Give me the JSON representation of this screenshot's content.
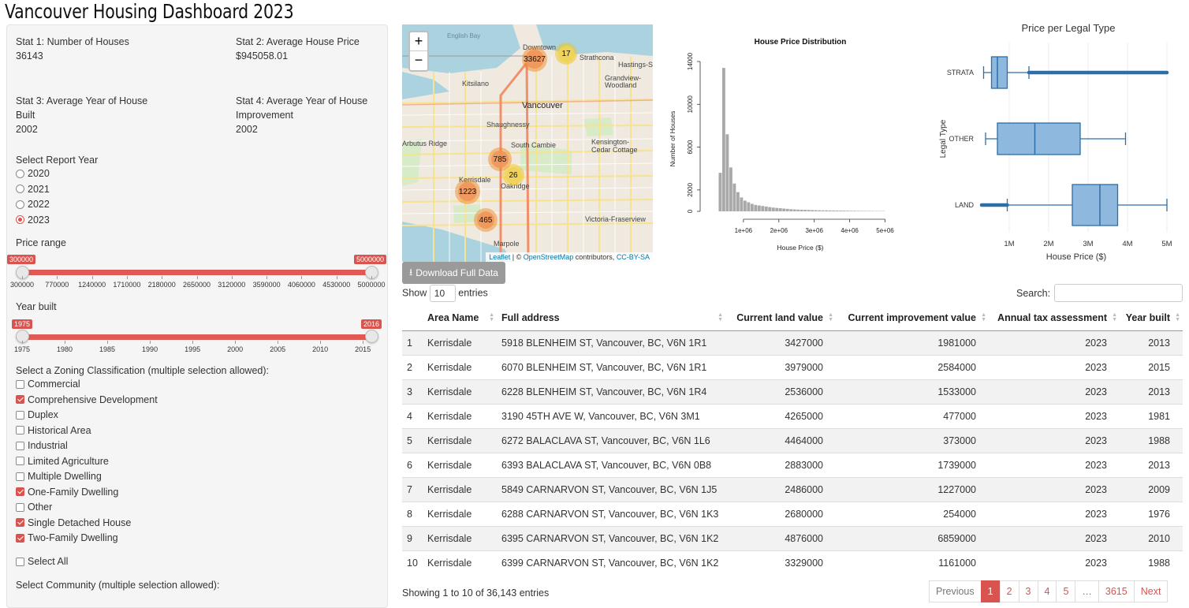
{
  "title": "Vancouver Housing Dashboard 2023",
  "stats": {
    "s1_label": "Stat 1: Number of Houses",
    "s1_value": "36143",
    "s2_label": "Stat 2: Average House Price",
    "s2_value": "$945058.01",
    "s3_label_a": "Stat 3: Average Year of House",
    "s3_label_b": "Built",
    "s3_value": "2002",
    "s4_label_a": "Stat 4: Average Year of House",
    "s4_label_b": "Improvement",
    "s4_value": "2002"
  },
  "report_year": {
    "label": "Select Report Year",
    "options": [
      "2020",
      "2021",
      "2022",
      "2023"
    ],
    "selected": "2023"
  },
  "price_range": {
    "label": "Price range",
    "min_badge": "300000",
    "max_badge": "5000000",
    "ticks": [
      "300000",
      "770000",
      "1240000",
      "1710000",
      "2180000",
      "2650000",
      "3120000",
      "3590000",
      "4060000",
      "4530000",
      "5000000"
    ]
  },
  "year_built": {
    "label": "Year built",
    "min_badge": "1975",
    "max_badge": "2016",
    "ticks": [
      "1975",
      "1980",
      "1985",
      "1990",
      "1995",
      "2000",
      "2005",
      "2010",
      "2015"
    ]
  },
  "zoning": {
    "label": "Select a Zoning Classification (multiple selection allowed):",
    "items": [
      {
        "label": "Commercial",
        "checked": false
      },
      {
        "label": "Comprehensive Development",
        "checked": true
      },
      {
        "label": "Duplex",
        "checked": false
      },
      {
        "label": "Historical Area",
        "checked": false
      },
      {
        "label": "Industrial",
        "checked": false
      },
      {
        "label": "Limited Agriculture",
        "checked": false
      },
      {
        "label": "Multiple Dwelling",
        "checked": false
      },
      {
        "label": "One-Family Dwelling",
        "checked": true
      },
      {
        "label": "Other",
        "checked": false
      },
      {
        "label": "Single Detached House",
        "checked": true
      },
      {
        "label": "Two-Family Dwelling",
        "checked": true
      }
    ],
    "select_all": "Select All"
  },
  "community": {
    "label": "Select Community (multiple selection allowed):"
  },
  "map": {
    "zoom_in": "+",
    "zoom_out": "−",
    "clusters": [
      "33627",
      "17",
      "785",
      "26",
      "1223",
      "465"
    ],
    "labels": [
      "English Bay",
      "Downtown",
      "Hastings-Sunrise",
      "Kitsilano",
      "Grandview-Woodland",
      "Vancouver",
      "Shaughnessy",
      "Arbutus Ridge",
      "South Cambie",
      "Kensington-Cedar Cottage",
      "Kerrisdale",
      "Oakridge",
      "Victoria-Fraserview",
      "Marpole",
      "Strathcona"
    ],
    "attrib_leaflet": "Leaflet",
    "attrib_osm": "OpenStreetMap",
    "attrib_sep": " | © ",
    "attrib_mid": " contributors, ",
    "attrib_cc": "CC-BY-SA"
  },
  "download_label": "Download Full Data",
  "histogram": {
    "title": "House Price Distribution",
    "xlabel": "House Price ($)",
    "ylabel": "Number of Houses"
  },
  "boxplot": {
    "title": "Price per Legal Type",
    "xlabel": "House Price ($)",
    "ylabel": "Legal Type"
  },
  "chart_data": [
    {
      "type": "bar",
      "title": "House Price Distribution",
      "xlabel": "House Price ($)",
      "ylabel": "Number of Houses",
      "bin_width": 100000,
      "bin_start": 300000,
      "values": [
        3600,
        13400,
        7200,
        4100,
        2600,
        1800,
        1300,
        1000,
        850,
        700,
        600,
        550,
        500,
        450,
        400,
        350,
        320,
        290,
        260,
        230,
        200,
        180,
        160,
        150,
        140,
        130,
        120,
        110,
        100,
        95,
        90,
        85,
        80,
        75,
        70,
        65,
        60,
        55,
        50,
        45,
        40,
        38,
        36,
        34,
        32,
        30,
        28
      ],
      "xlim": [
        300000,
        5000000
      ],
      "ylim": [
        0,
        14000
      ],
      "x_ticks": [
        "1e+06",
        "2e+06",
        "3e+06",
        "4e+06",
        "5e+06"
      ],
      "y_ticks": [
        "0",
        "2000",
        "6000",
        "10000",
        "14000"
      ]
    },
    {
      "type": "box",
      "title": "Price per Legal Type",
      "xlabel": "House Price ($)",
      "ylabel": "Legal Type",
      "categories": [
        "STRATA",
        "OTHER",
        "LAND"
      ],
      "boxes": [
        {
          "name": "STRATA",
          "whisker_low": 350000,
          "q1": 550000,
          "median": 700000,
          "q3": 950000,
          "whisker_high": 1500000,
          "outliers_to": 5000000
        },
        {
          "name": "OTHER",
          "whisker_low": 400000,
          "q1": 700000,
          "median": 1650000,
          "q3": 2800000,
          "whisker_high": 3950000
        },
        {
          "name": "LAND",
          "whisker_low": 950000,
          "q1": 2600000,
          "median": 3300000,
          "q3": 3750000,
          "whisker_high": 5000000,
          "outliers_from": 300000
        }
      ],
      "xlim": [
        200000,
        5100000
      ],
      "x_ticks": [
        "1M",
        "2M",
        "3M",
        "4M",
        "5M"
      ]
    }
  ],
  "table": {
    "show_label": "Show",
    "show_value": "10",
    "entries_label": "entries",
    "search_label": "Search:",
    "columns": [
      "",
      "Area Name",
      "Full address",
      "Current land value",
      "Current improvement value",
      "Annual tax assessment",
      "Year built"
    ],
    "rows": [
      [
        "1",
        "Kerrisdale",
        "5918 BLENHEIM ST, Vancouver, BC, V6N 1R1",
        "3427000",
        "1981000",
        "2023",
        "2013"
      ],
      [
        "2",
        "Kerrisdale",
        "6070 BLENHEIM ST, Vancouver, BC, V6N 1R1",
        "3979000",
        "2584000",
        "2023",
        "2015"
      ],
      [
        "3",
        "Kerrisdale",
        "6228 BLENHEIM ST, Vancouver, BC, V6N 1R4",
        "2536000",
        "1533000",
        "2023",
        "2013"
      ],
      [
        "4",
        "Kerrisdale",
        "3190 45TH AVE W, Vancouver, BC, V6N 3M1",
        "4265000",
        "477000",
        "2023",
        "1981"
      ],
      [
        "5",
        "Kerrisdale",
        "6272 BALACLAVA ST, Vancouver, BC, V6N 1L6",
        "4464000",
        "373000",
        "2023",
        "1988"
      ],
      [
        "6",
        "Kerrisdale",
        "6393 BALACLAVA ST, Vancouver, BC, V6N 0B8",
        "2883000",
        "1739000",
        "2023",
        "2013"
      ],
      [
        "7",
        "Kerrisdale",
        "5849 CARNARVON ST, Vancouver, BC, V6N 1J5",
        "2486000",
        "1227000",
        "2023",
        "2009"
      ],
      [
        "8",
        "Kerrisdale",
        "6288 CARNARVON ST, Vancouver, BC, V6N 1K3",
        "2680000",
        "254000",
        "2023",
        "1976"
      ],
      [
        "9",
        "Kerrisdale",
        "6395 CARNARVON ST, Vancouver, BC, V6N 1K2",
        "4876000",
        "6859000",
        "2023",
        "2010"
      ],
      [
        "10",
        "Kerrisdale",
        "6399 CARNARVON ST, Vancouver, BC, V6N 1K2",
        "3329000",
        "1161000",
        "2023",
        "1988"
      ]
    ],
    "info": "Showing 1 to 10 of 36,143 entries",
    "pages": [
      "Previous",
      "1",
      "2",
      "3",
      "4",
      "5",
      "…",
      "3615",
      "Next"
    ]
  },
  "colors": {
    "accent": "#d9534f",
    "box_fill": "#8fb8df",
    "box_line": "#2c6fa8",
    "bar": "#a9a9a9"
  }
}
